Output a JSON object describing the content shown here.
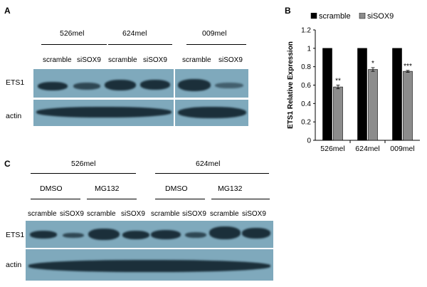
{
  "panel_a": {
    "label": "A",
    "groups": [
      "526mel",
      "624mel",
      "009mel"
    ],
    "lanes": [
      "scramble",
      "siSOX9",
      "scramble",
      "siSOX9",
      "scramble",
      "siSOX9"
    ],
    "rows": [
      "ETS1",
      "actin"
    ]
  },
  "panel_c": {
    "label": "C",
    "groups": [
      "526mel",
      "624mel"
    ],
    "treatments": [
      "DMSO",
      "MG132",
      "DMSO",
      "MG132"
    ],
    "lanes": [
      "scramble",
      "siSOX9",
      "scramble",
      "siSOX9",
      "scramble",
      "siSOX9",
      "scramble",
      "siSOX9"
    ],
    "rows": [
      "ETS1",
      "actin"
    ]
  },
  "panel_b": {
    "label": "B",
    "colors": {
      "scramble": "#000000",
      "siSOX9": "#8c8c8c",
      "blot": "#7fa9bc"
    }
  },
  "chart_data": {
    "type": "bar",
    "categories": [
      "526mel",
      "624mel",
      "009mel"
    ],
    "series": [
      {
        "name": "scramble",
        "values": [
          1,
          1,
          1
        ],
        "errors": [
          0,
          0,
          0
        ]
      },
      {
        "name": "siSOX9",
        "values": [
          0.58,
          0.77,
          0.75
        ],
        "errors": [
          0.02,
          0.02,
          0.01
        ]
      }
    ],
    "significance": [
      "**",
      "*",
      "***"
    ],
    "ylabel": "ETS1 Relative Expression",
    "xlabel": "",
    "ylim": [
      0,
      1.2
    ],
    "yticks": [
      "0",
      "0.2",
      "0.4",
      "0.6",
      "0.8",
      "1",
      "1.2"
    ],
    "legend_position": "top",
    "grid": false
  }
}
